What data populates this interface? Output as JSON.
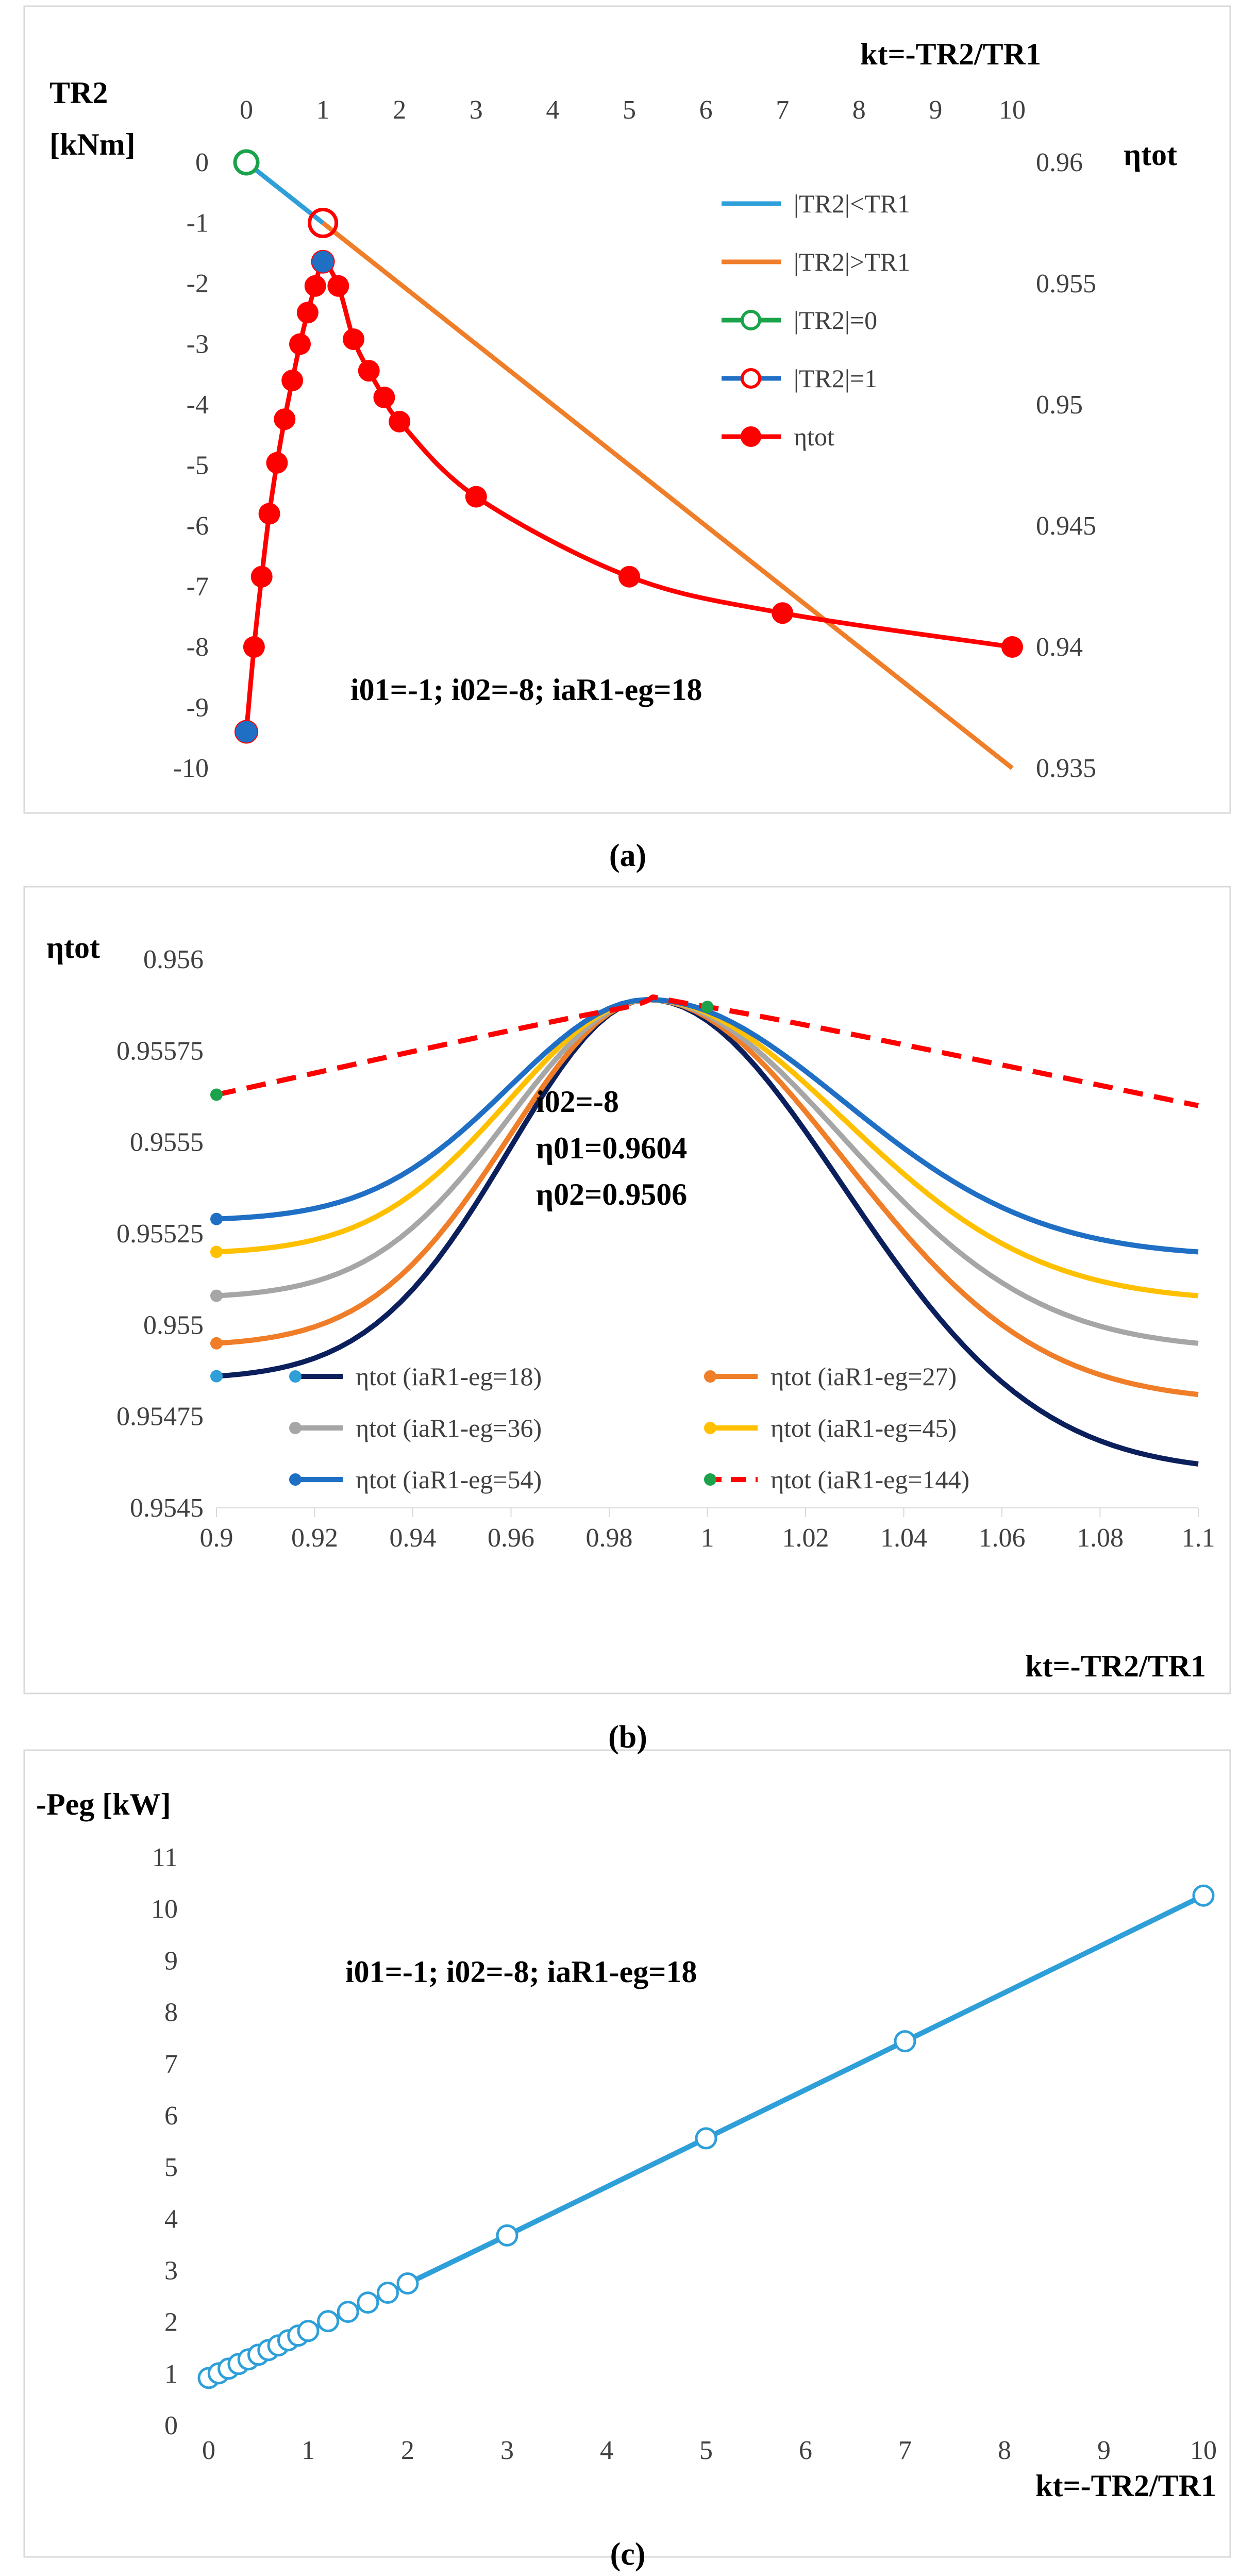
{
  "captions": {
    "a": "(a)",
    "b": "(b)",
    "c": "(c)"
  },
  "chart_data": [
    {
      "type": "line",
      "panel": "a",
      "left_axis_title_line1": "TR2",
      "left_axis_title_line2": "[kNm]",
      "right_axis_title": "ηtot",
      "x_axis_title": "kt=-TR2/TR1",
      "xlim": [
        0,
        10
      ],
      "x_ticks": [
        "0",
        "1",
        "2",
        "3",
        "4",
        "5",
        "6",
        "7",
        "8",
        "9",
        "10"
      ],
      "ylim_left": [
        -10,
        0
      ],
      "left_ticks": [
        "0",
        "-1",
        "-2",
        "-3",
        "-4",
        "-5",
        "-6",
        "-7",
        "-8",
        "-9",
        "-10"
      ],
      "ylim_right": [
        0.935,
        0.96
      ],
      "right_ticks": [
        "0.96",
        "0.955",
        "0.95",
        "0.945",
        "0.94",
        "0.935"
      ],
      "annotation": "i01=-1; i02=-8; iaR1-eg=18",
      "legend": [
        "|TR2|<TR1",
        "|TR2|>TR1",
        "|TR2|=0",
        "|TR2|=1",
        "ηtot"
      ],
      "colors": {
        "blue": "#2e9fd8",
        "orange": "#f07d28",
        "green": "#1aa34a",
        "red": "#ff0000",
        "marker_blue": "#1f6fc5"
      },
      "series": [
        {
          "name": "|TR2|<TR1",
          "axis": "left",
          "x": [
            0,
            1
          ],
          "y": [
            0,
            -1
          ]
        },
        {
          "name": "|TR2|>TR1",
          "axis": "left",
          "x": [
            1,
            10
          ],
          "y": [
            -1,
            -10
          ]
        },
        {
          "name": "|TR2|=0",
          "axis": "left",
          "x": [
            0
          ],
          "y": [
            0
          ]
        },
        {
          "name": "|TR2|=1",
          "axis": "left",
          "x": [
            1
          ],
          "y": [
            -1
          ]
        },
        {
          "name": "ηtot",
          "axis": "right",
          "x": [
            0,
            0.1,
            0.2,
            0.3,
            0.4,
            0.5,
            0.6,
            0.7,
            0.8,
            0.9,
            1.0,
            1.2,
            1.4,
            1.6,
            1.8,
            2,
            3,
            5,
            7,
            10
          ],
          "y": [
            0.9365,
            0.94,
            0.9429,
            0.9455,
            0.9476,
            0.9494,
            0.951,
            0.9525,
            0.9538,
            0.9549,
            0.9559,
            0.9549,
            0.9527,
            0.9514,
            0.9503,
            0.9493,
            0.9462,
            0.9429,
            0.9414,
            0.94
          ]
        }
      ]
    },
    {
      "type": "line",
      "panel": "b",
      "y_axis_title": "ηtot",
      "x_axis_title": "kt=-TR2/TR1",
      "xlim": [
        0.9,
        1.1
      ],
      "x_ticks": [
        "0.9",
        "0.92",
        "0.94",
        "0.96",
        "0.98",
        "1",
        "1.02",
        "1.04",
        "1.06",
        "1.08",
        "1.1"
      ],
      "ylim": [
        0.9545,
        0.956
      ],
      "y_ticks": [
        "0.956",
        "0.95575",
        "0.9555",
        "0.95525",
        "0.955",
        "0.95475",
        "0.9545"
      ],
      "annotation_lines": [
        "i02=-8",
        "η01=0.9604",
        "η02=0.9506"
      ],
      "legend": [
        "ηtot (iaR1-eg=18)",
        "ηtot (iaR1-eg=27)",
        "ηtot (iaR1-eg=36)",
        "ηtot (iaR1-eg=45)",
        "ηtot (iaR1-eg=54)",
        "ηtot (iaR1-eg=144)"
      ],
      "series": [
        {
          "name": "ηtot (iaR1-eg=18)",
          "color": "#0b1f5c",
          "marker_color": "#2e9fd8",
          "x": [
            0.9,
            1.0,
            1.1
          ],
          "y": [
            0.95486,
            0.95587,
            0.95462
          ],
          "peak": 0.95589,
          "peak_x": 0.988
        },
        {
          "name": "ηtot (iaR1-eg=27)",
          "color": "#f07d28",
          "marker_color": "#f07d28",
          "x": [
            0.9,
            1.0,
            1.1
          ],
          "y": [
            0.95495,
            0.95587,
            0.95481
          ],
          "peak": 0.95589,
          "peak_x": 0.988
        },
        {
          "name": "ηtot (iaR1-eg=36)",
          "color": "#a6a6a6",
          "marker_color": "#a6a6a6",
          "x": [
            0.9,
            1.0,
            1.1
          ],
          "y": [
            0.95508,
            0.95587,
            0.95495
          ],
          "peak": 0.95589,
          "peak_x": 0.988
        },
        {
          "name": "ηtot (iaR1-eg=45)",
          "color": "#ffc000",
          "marker_color": "#ffc000",
          "x": [
            0.9,
            1.0,
            1.1
          ],
          "y": [
            0.9552,
            0.95587,
            0.95508
          ],
          "peak": 0.95589,
          "peak_x": 0.988
        },
        {
          "name": "ηtot (iaR1-eg=54)",
          "color": "#1f6fc5",
          "marker_color": "#1f6fc5",
          "x": [
            0.9,
            1.0,
            1.1
          ],
          "y": [
            0.95529,
            0.95587,
            0.9552
          ],
          "peak": 0.95589,
          "peak_x": 0.988
        },
        {
          "name": "ηtot (iaR1-eg=144)",
          "color": "#ff0000",
          "marker_color": "#1aa34a",
          "dashed": true,
          "x": [
            0.9,
            0.98,
            1.0,
            1.1
          ],
          "y": [
            0.95563,
            0.95586,
            0.95587,
            0.9556
          ]
        }
      ]
    },
    {
      "type": "line",
      "panel": "c",
      "y_axis_title": "-Peg [kW]",
      "x_axis_title": "kt=-TR2/TR1",
      "xlim": [
        0,
        10
      ],
      "x_ticks": [
        "0",
        "1",
        "2",
        "3",
        "4",
        "5",
        "6",
        "7",
        "8",
        "9",
        "10"
      ],
      "ylim": [
        0,
        11
      ],
      "y_ticks": [
        "11",
        "10",
        "9",
        "8",
        "7",
        "6",
        "5",
        "4",
        "3",
        "2",
        "1",
        "0"
      ],
      "annotation": "i01=-1; i02=-8; iaR1-eg=18",
      "color": "#2e9fd8",
      "series": [
        {
          "name": "-Peg",
          "x": [
            0,
            0.1,
            0.2,
            0.3,
            0.4,
            0.5,
            0.6,
            0.7,
            0.8,
            0.9,
            1.0,
            1.2,
            1.4,
            1.6,
            1.8,
            2,
            3,
            5,
            7,
            10
          ],
          "y": [
            0.92,
            1.01,
            1.1,
            1.19,
            1.28,
            1.37,
            1.46,
            1.55,
            1.65,
            1.74,
            1.83,
            2.02,
            2.2,
            2.38,
            2.57,
            2.75,
            3.68,
            5.56,
            7.44,
            10.26
          ]
        }
      ]
    }
  ]
}
